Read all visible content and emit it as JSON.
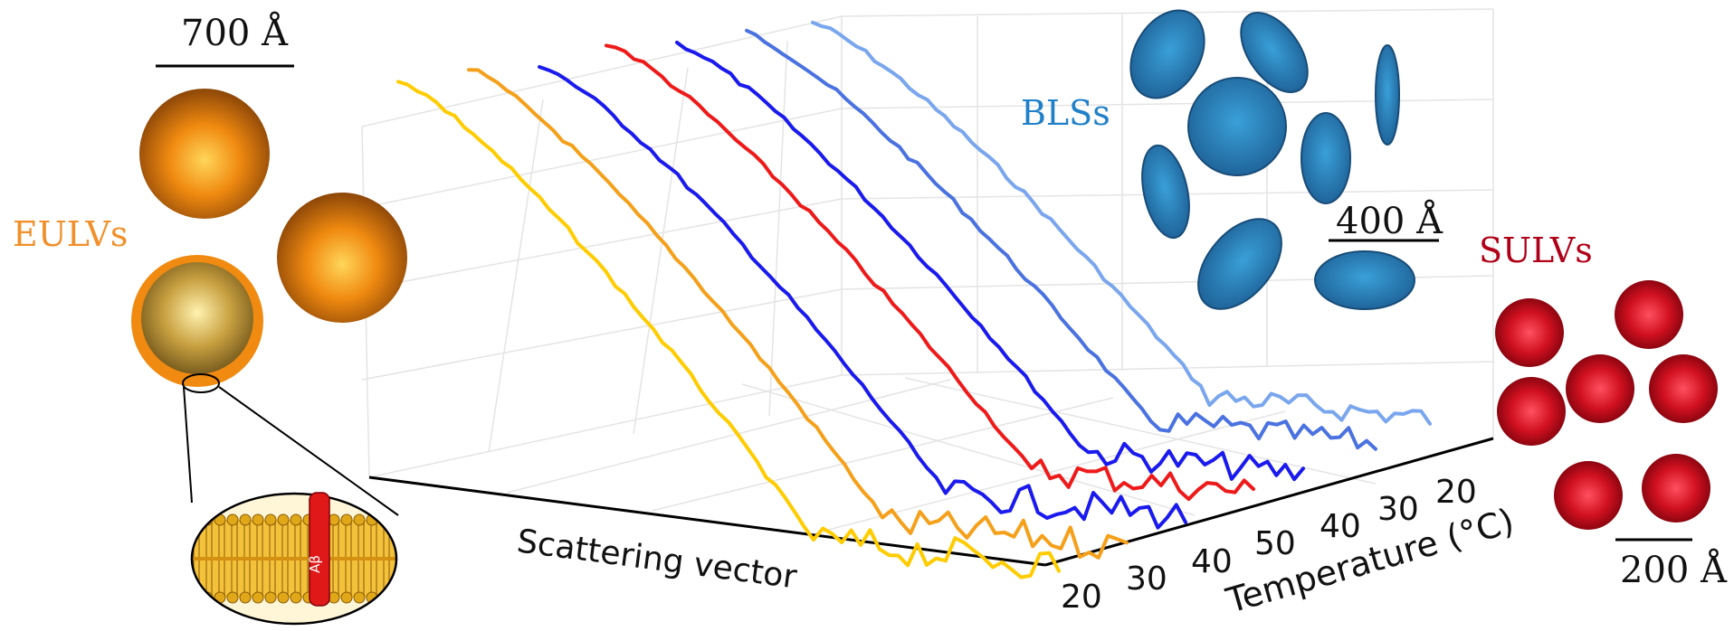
{
  "labels": {
    "eulvs": "EULVs",
    "blss": "BLSs",
    "sulvs": "SULVs",
    "scale_700": "700 Å",
    "scale_400": "400 Å",
    "scale_200": "200 Å",
    "abeta": "Aβ"
  },
  "axes": {
    "x_label": "Scattering vector",
    "depth_label": "Temperature (°C)",
    "depth_ticks_front": [
      "20",
      "30",
      "40",
      "50"
    ],
    "depth_ticks_back": [
      "40",
      "30",
      "20"
    ]
  },
  "colors": {
    "eulvs": "#f0902a",
    "blss": "#2080c8",
    "sulvs": "#b00018",
    "curves": [
      "#ffcc00",
      "#f5a01a",
      "#1a1aee",
      "#ee1a1a",
      "#1a1aee",
      "#4a72e0",
      "#7aa6ee"
    ]
  },
  "icons": [
    "orange-vesicle-icon",
    "blue-bicelle-disc-icon",
    "red-vesicle-icon",
    "lipid-bilayer-inset-icon",
    "abeta-peptide-icon"
  ]
}
